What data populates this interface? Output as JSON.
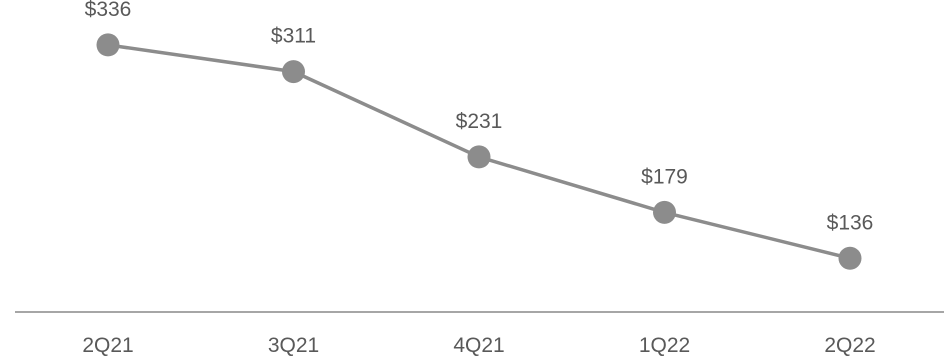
{
  "chart_data": {
    "type": "line",
    "categories": [
      "2Q21",
      "3Q21",
      "4Q21",
      "1Q22",
      "2Q22"
    ],
    "series": [
      {
        "values": [
          336,
          311,
          231,
          179,
          136
        ],
        "labels": [
          "$336",
          "$311",
          "$231",
          "$179",
          "$136"
        ],
        "color": "#8c8c8c"
      }
    ],
    "title": "",
    "xlabel": "",
    "ylabel": "",
    "ylim": [
      80,
      365
    ],
    "grid": false,
    "legend": "none",
    "colors": {
      "line": "#8c8c8c",
      "marker": "#8c8c8c",
      "axis": "#a6a6a6",
      "text": "#595959"
    }
  }
}
